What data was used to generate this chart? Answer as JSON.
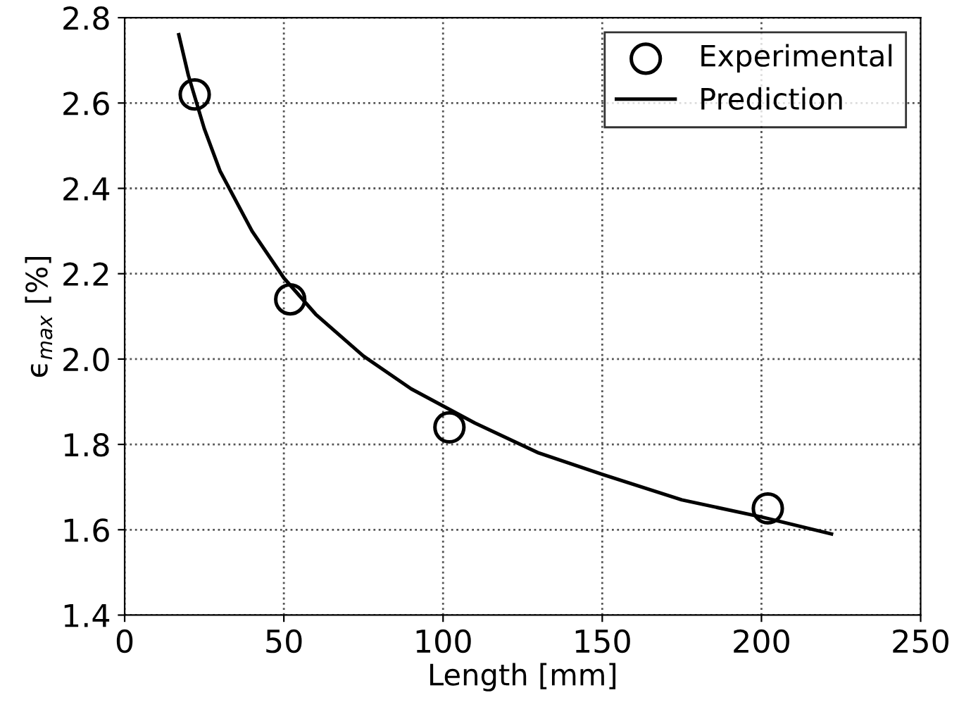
{
  "chart_data": {
    "type": "line",
    "xlabel": "Length [mm]",
    "ylabel": "ϵ$_{max}$ [%]",
    "xlim": [
      0,
      250
    ],
    "xticks": [
      0,
      50,
      100,
      150,
      200,
      250
    ],
    "ylim": [
      1.4,
      2.8
    ],
    "yticks": [
      1.4,
      1.6,
      1.8,
      {
        "value": 2,
        "label": "2.0"
      },
      2.2,
      2.4,
      2.6,
      2.8
    ],
    "grid": true,
    "legend": "top right",
    "series": [
      {
        "name": "Experimental",
        "type": "scatter",
        "marker": "circle",
        "color": "#000000",
        "x": [
          22,
          52,
          102,
          202
        ],
        "values": [
          2.62,
          2.14,
          1.84,
          1.65
        ]
      },
      {
        "name": "Prediction",
        "marker": "none",
        "line_style": "solid",
        "color": "#000000",
        "x": [
          17,
          20,
          25,
          30,
          40,
          50,
          60,
          75,
          90,
          110,
          130,
          150,
          175,
          200,
          222
        ],
        "values": [
          2.76,
          2.665,
          2.54,
          2.44,
          2.3,
          2.19,
          2.105,
          2.007,
          1.93,
          1.85,
          1.78,
          1.73,
          1.67,
          1.63,
          1.59
        ]
      }
    ]
  }
}
